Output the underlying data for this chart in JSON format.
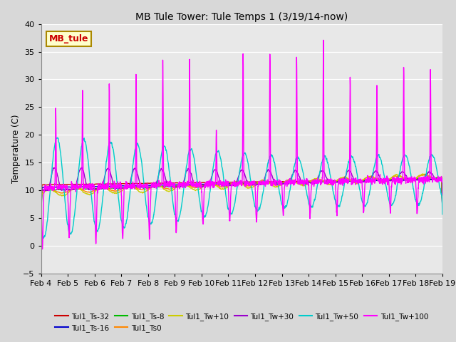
{
  "title": "MB Tule Tower: Tule Temps 1 (3/19/14-now)",
  "ylabel": "Temperature (C)",
  "xlim": [
    0,
    15
  ],
  "ylim": [
    -5,
    40
  ],
  "yticks": [
    -5,
    0,
    5,
    10,
    15,
    20,
    25,
    30,
    35,
    40
  ],
  "xtick_labels": [
    "Feb 4",
    "Feb 5",
    "Feb 6",
    "Feb 7",
    "Feb 8",
    "Feb 9",
    "Feb 10",
    "Feb 11",
    "Feb 12",
    "Feb 13",
    "Feb 14",
    "Feb 15",
    "Feb 16",
    "Feb 17",
    "Feb 18",
    "Feb 19"
  ],
  "background_color": "#d8d8d8",
  "plot_bg_color": "#e8e8e8",
  "series": {
    "Tul1_Ts-32": {
      "color": "#cc0000",
      "lw": 1.0
    },
    "Tul1_Ts-16": {
      "color": "#0000cc",
      "lw": 1.0
    },
    "Tul1_Ts-8": {
      "color": "#00bb00",
      "lw": 1.0
    },
    "Tul1_Ts0": {
      "color": "#ff8800",
      "lw": 1.0
    },
    "Tul1_Tw+10": {
      "color": "#cccc00",
      "lw": 1.0
    },
    "Tul1_Tw+30": {
      "color": "#9900cc",
      "lw": 1.0
    },
    "Tul1_Tw+50": {
      "color": "#00cccc",
      "lw": 1.0
    },
    "Tul1_Tw+100": {
      "color": "#ff00ff",
      "lw": 1.0
    }
  },
  "annotation_box": {
    "text": "MB_tule",
    "facecolor": "#ffffcc",
    "edgecolor": "#aa8800",
    "textcolor": "#cc0000",
    "fontsize": 9,
    "fontweight": "bold"
  },
  "legend_items": [
    {
      "label": "Tul1_Ts-32",
      "color": "#cc0000"
    },
    {
      "label": "Tul1_Ts-16",
      "color": "#0000cc"
    },
    {
      "label": "Tul1_Ts-8",
      "color": "#00bb00"
    },
    {
      "label": "Tul1_Ts0",
      "color": "#ff8800"
    },
    {
      "label": "Tul1_Tw+10",
      "color": "#cccc00"
    },
    {
      "label": "Tul1_Tw+30",
      "color": "#9900cc"
    },
    {
      "label": "Tul1_Tw+50",
      "color": "#00cccc"
    },
    {
      "label": "Tul1_Tw+100",
      "color": "#ff00ff"
    }
  ],
  "figsize": [
    6.4,
    4.8
  ],
  "dpi": 100
}
